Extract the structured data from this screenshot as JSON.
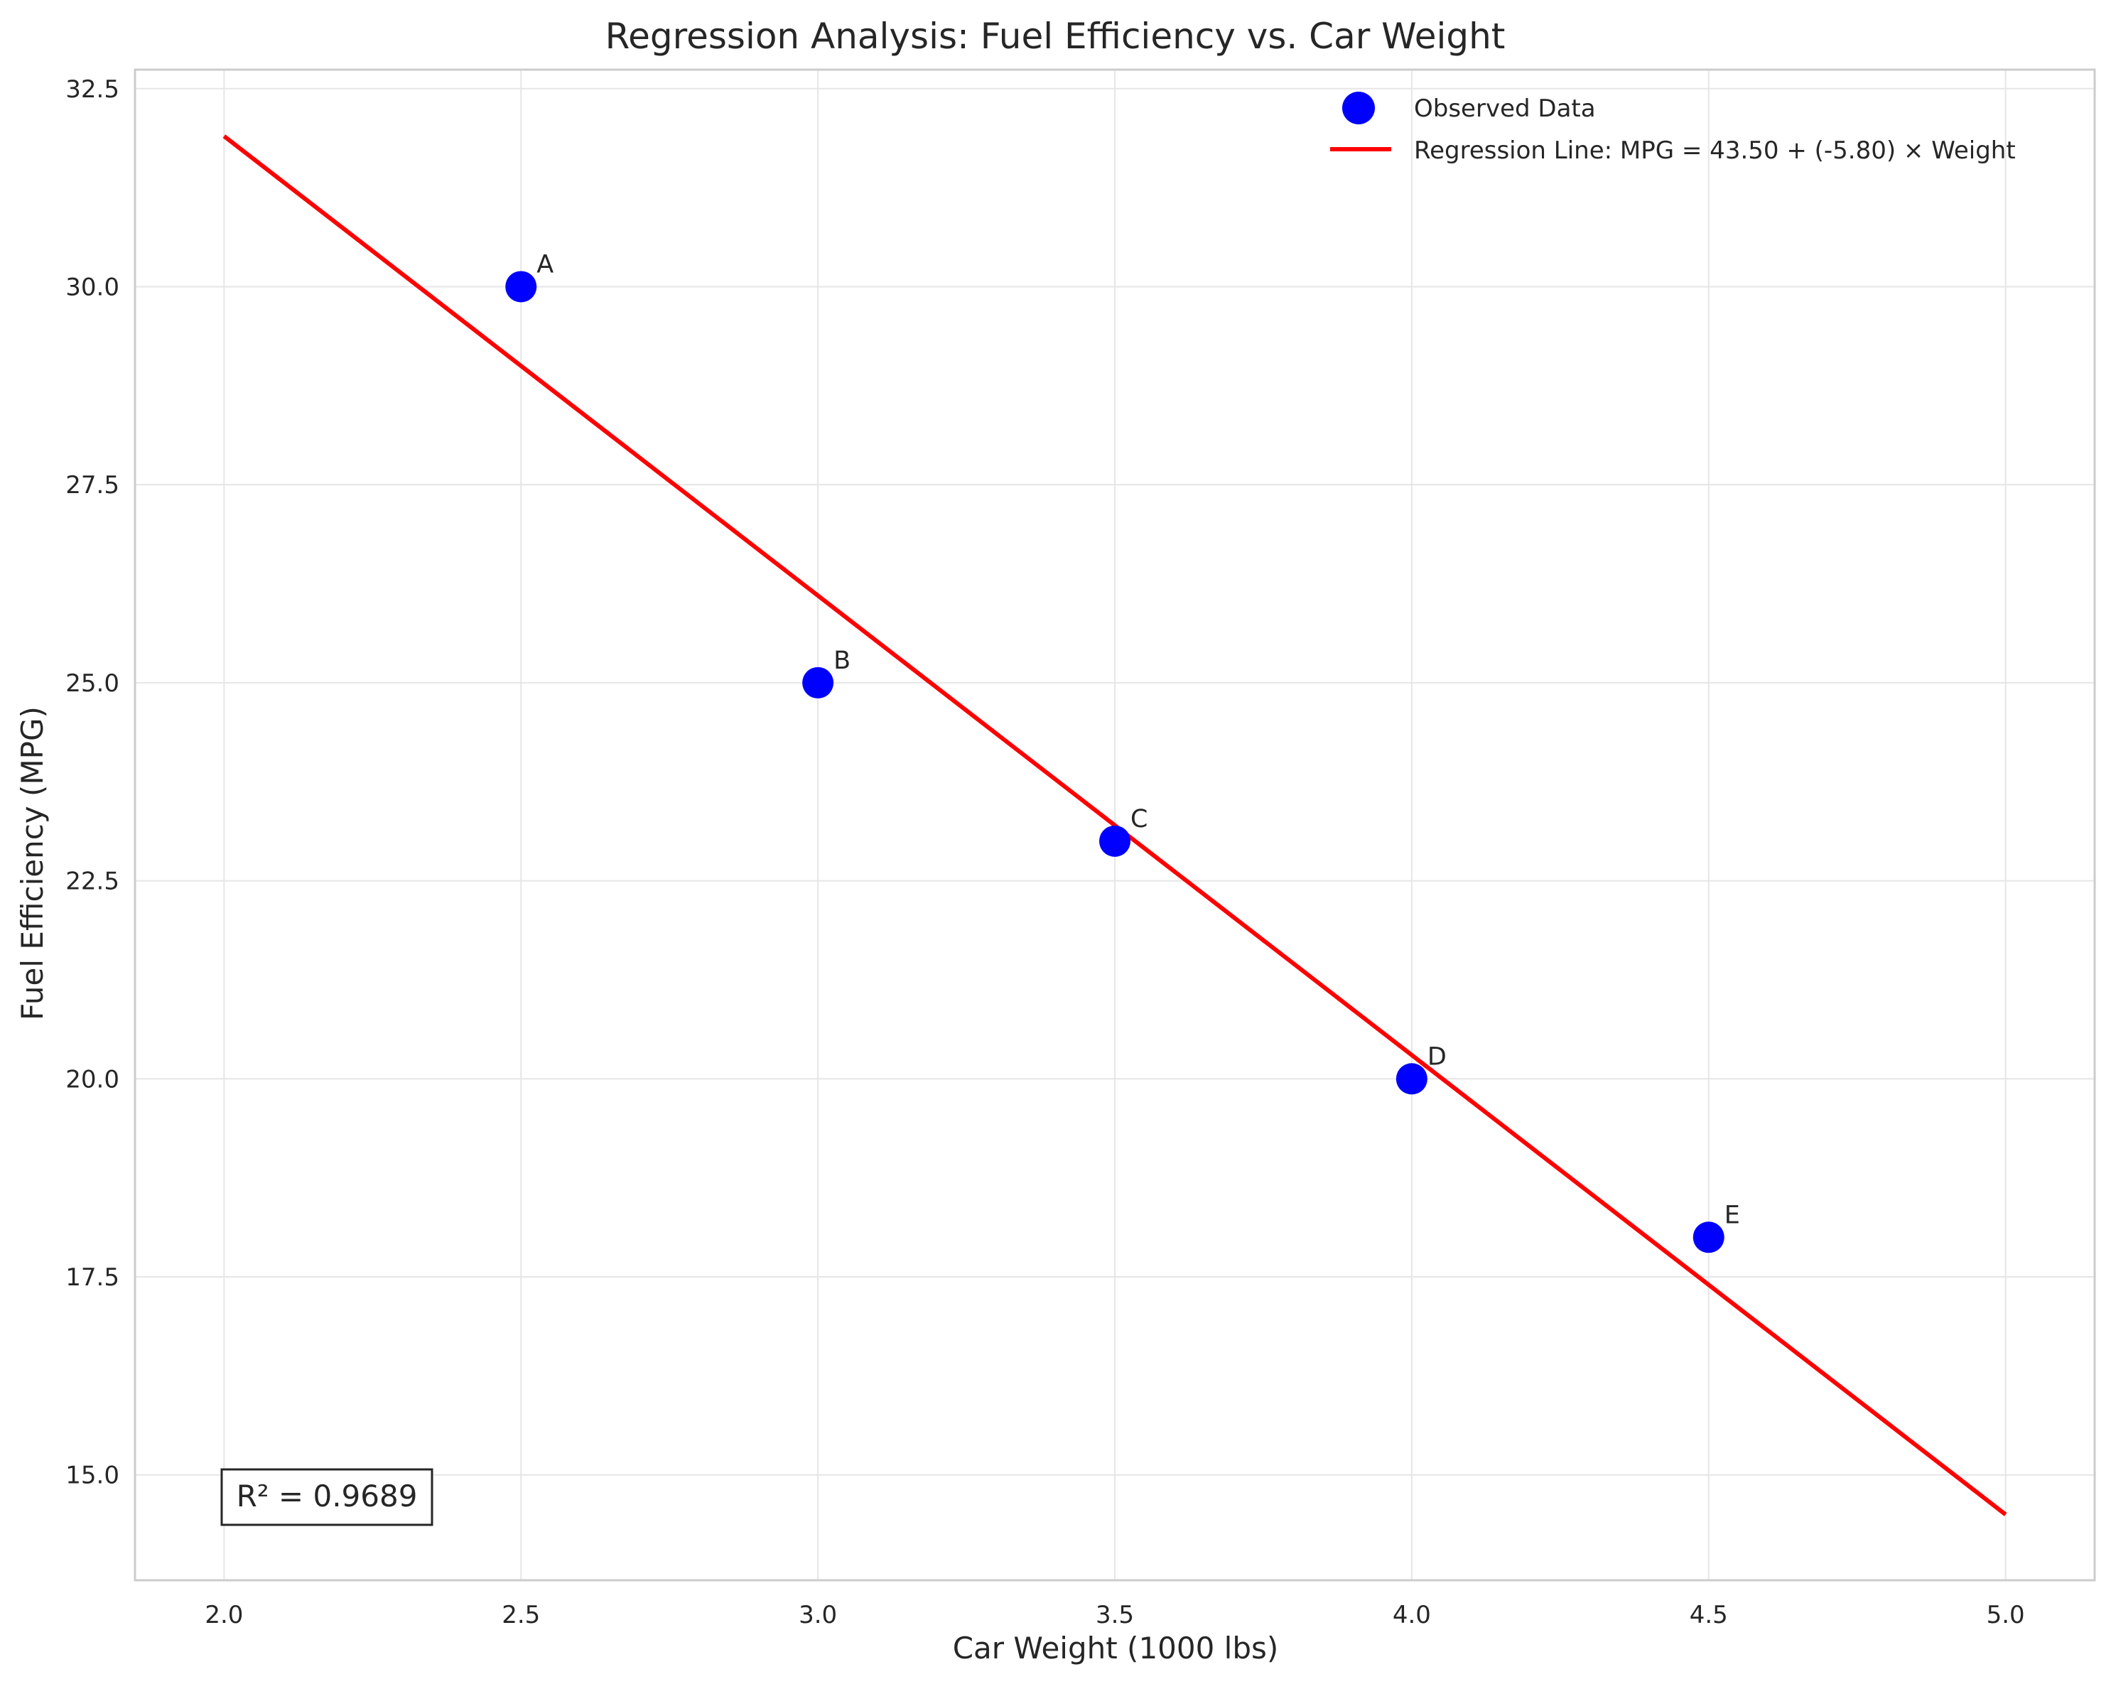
{
  "chart_data": {
    "type": "scatter",
    "title": "Regression Analysis: Fuel Efficiency vs. Car Weight",
    "xlabel": "Car Weight (1000 lbs)",
    "ylabel": "Fuel Efficiency (MPG)",
    "xlim": [
      1.85,
      5.15
    ],
    "ylim": [
      13.67,
      32.74
    ],
    "xticks": [
      2.0,
      2.5,
      3.0,
      3.5,
      4.0,
      4.5,
      5.0
    ],
    "xtick_labels": [
      "2.0",
      "2.5",
      "3.0",
      "3.5",
      "4.0",
      "4.5",
      "5.0"
    ],
    "yticks": [
      15.0,
      17.5,
      20.0,
      22.5,
      25.0,
      27.5,
      30.0,
      32.5
    ],
    "ytick_labels": [
      "15.0",
      "17.5",
      "20.0",
      "22.5",
      "25.0",
      "27.5",
      "30.0",
      "32.5"
    ],
    "grid": true,
    "legend_position": "top-right",
    "series": [
      {
        "name": "Observed Data",
        "kind": "scatter",
        "color": "#0000ff",
        "points": [
          {
            "label": "A",
            "x": 2.5,
            "y": 30.0
          },
          {
            "label": "B",
            "x": 3.0,
            "y": 25.0
          },
          {
            "label": "C",
            "x": 3.5,
            "y": 23.0
          },
          {
            "label": "D",
            "x": 4.0,
            "y": 20.0
          },
          {
            "label": "E",
            "x": 4.5,
            "y": 18.0
          }
        ]
      },
      {
        "name": "Regression Line: MPG = 43.50 + (-5.80) × Weight",
        "kind": "line",
        "color": "#ff0000",
        "intercept": 43.5,
        "slope": -5.8,
        "x_range": [
          2.0,
          5.0
        ]
      }
    ],
    "annotation": {
      "text": "R² = 0.9689",
      "position": "bottom-left"
    }
  }
}
